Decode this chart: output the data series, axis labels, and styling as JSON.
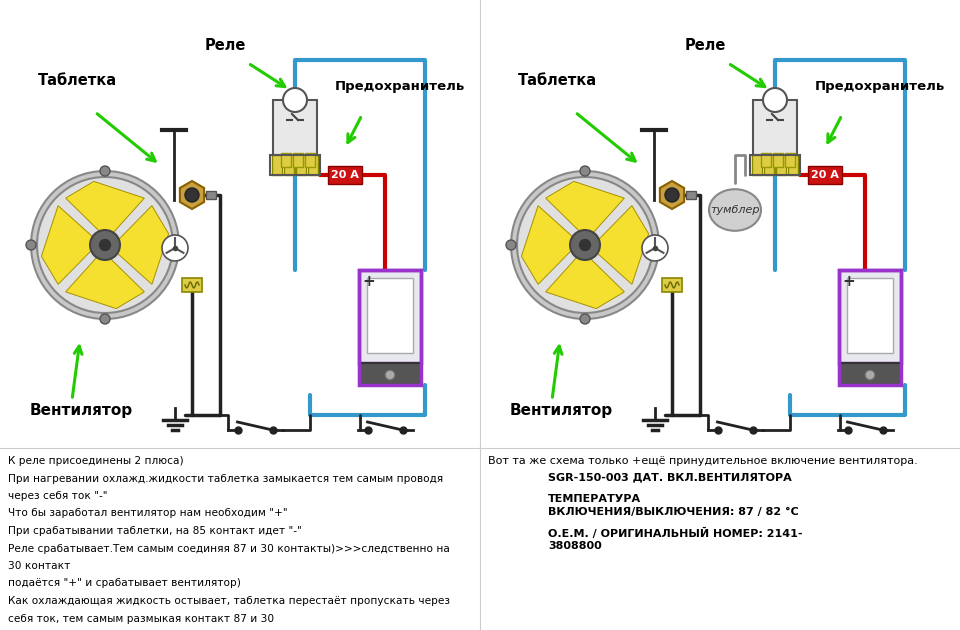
{
  "bg_color": "#ffffff",
  "left_text_lines": [
    "К реле присоединены 2 плюса)",
    "При нагревании охлажд.жидкости таблетка замыкается тем самым проводя",
    "через себя ток \"-\"",
    "Что бы заработал вентилятор нам необходим \"+\"",
    "При срабатывании таблетки, на 85 контакт идет \"-\"",
    "Реле срабатывает.Тем самым соединяя 87 и 30 контакты)>>>следственно на",
    "30 контакт",
    "подаётся \"+\" и срабатывает вентилятор)",
    "Как охлаждающая жидкость остывает, таблетка перестаёт пропускать через",
    "себя ток, тем самым размыкая контакт 87 и 30"
  ],
  "right_text_line0": "Вот та же схема только +ещё принудительное включение вентилятора.",
  "right_text_line1": "SGR-150-003 ДАТ. ВКЛ.ВЕНТИЛЯТОРА",
  "right_text_line2": "ТЕМПЕРАТУРА",
  "right_text_line3": "ВКЛЮЧЕНИЯ/ВЫКЛЮЧЕНИЯ: 87 / 82 °С",
  "right_text_line4": "О.Е.М. / ОРИГИНАЛЬНЫЙ НОМЕР: 2141-",
  "right_text_line5": "3808800",
  "label_tableta": "Таблетка",
  "label_rele": "Реле",
  "label_predohranitel": "Предохранитель",
  "label_20a": "20 А",
  "label_tumbler": "тумблер",
  "label_ventilyator": "Вентилятор",
  "wire_red": "#cc0000",
  "wire_blue": "#3399cc",
  "wire_black": "#222222",
  "wire_gray": "#888888",
  "fan_color": "#f5e030",
  "battery_border": "#9933cc",
  "battery_fill": "#e8e8f8",
  "green_arrow": "#22cc00"
}
